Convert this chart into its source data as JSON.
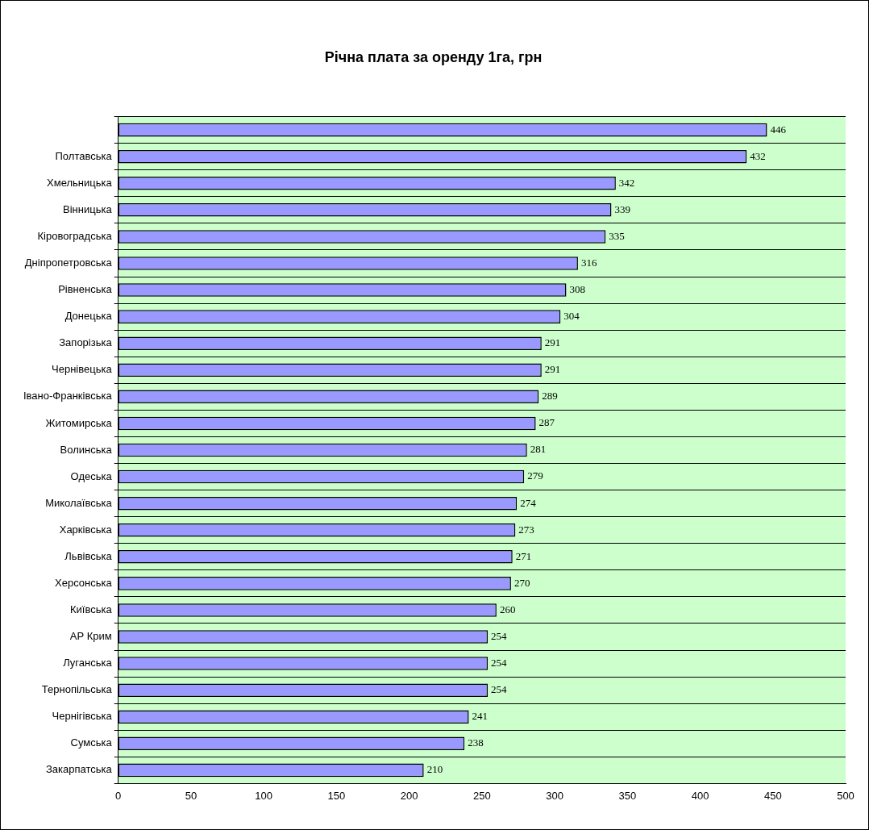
{
  "chart_data": {
    "type": "bar",
    "orientation": "horizontal",
    "title": "Річна плата за оренду 1га, грн",
    "categories": [
      null,
      "Полтавська",
      "Хмельницька",
      "Вінницька",
      "Кіровоградська",
      "Дніпропетровська",
      "Рівненська",
      "Донецька",
      "Запорізька",
      "Чернівецька",
      "Івано-Франківська",
      "Житомирська",
      "Волинська",
      "Одеська",
      "Миколаївська",
      "Харківська",
      "Львівська",
      "Херсонська",
      "Київська",
      "АР Крим",
      "Луганська",
      "Тернопільська",
      "Чернігівська",
      "Сумська",
      "Закарпатська"
    ],
    "values": [
      446,
      432,
      342,
      339,
      335,
      316,
      308,
      304,
      291,
      291,
      289,
      287,
      281,
      279,
      274,
      273,
      271,
      270,
      260,
      254,
      254,
      254,
      241,
      238,
      210
    ],
    "color": "#9999ff",
    "xlim": [
      0,
      500
    ],
    "xticks": [
      0,
      50,
      100,
      150,
      200,
      250,
      300,
      350,
      400,
      450,
      500
    ],
    "grid": "y",
    "data_labels": true,
    "legend": false
  }
}
